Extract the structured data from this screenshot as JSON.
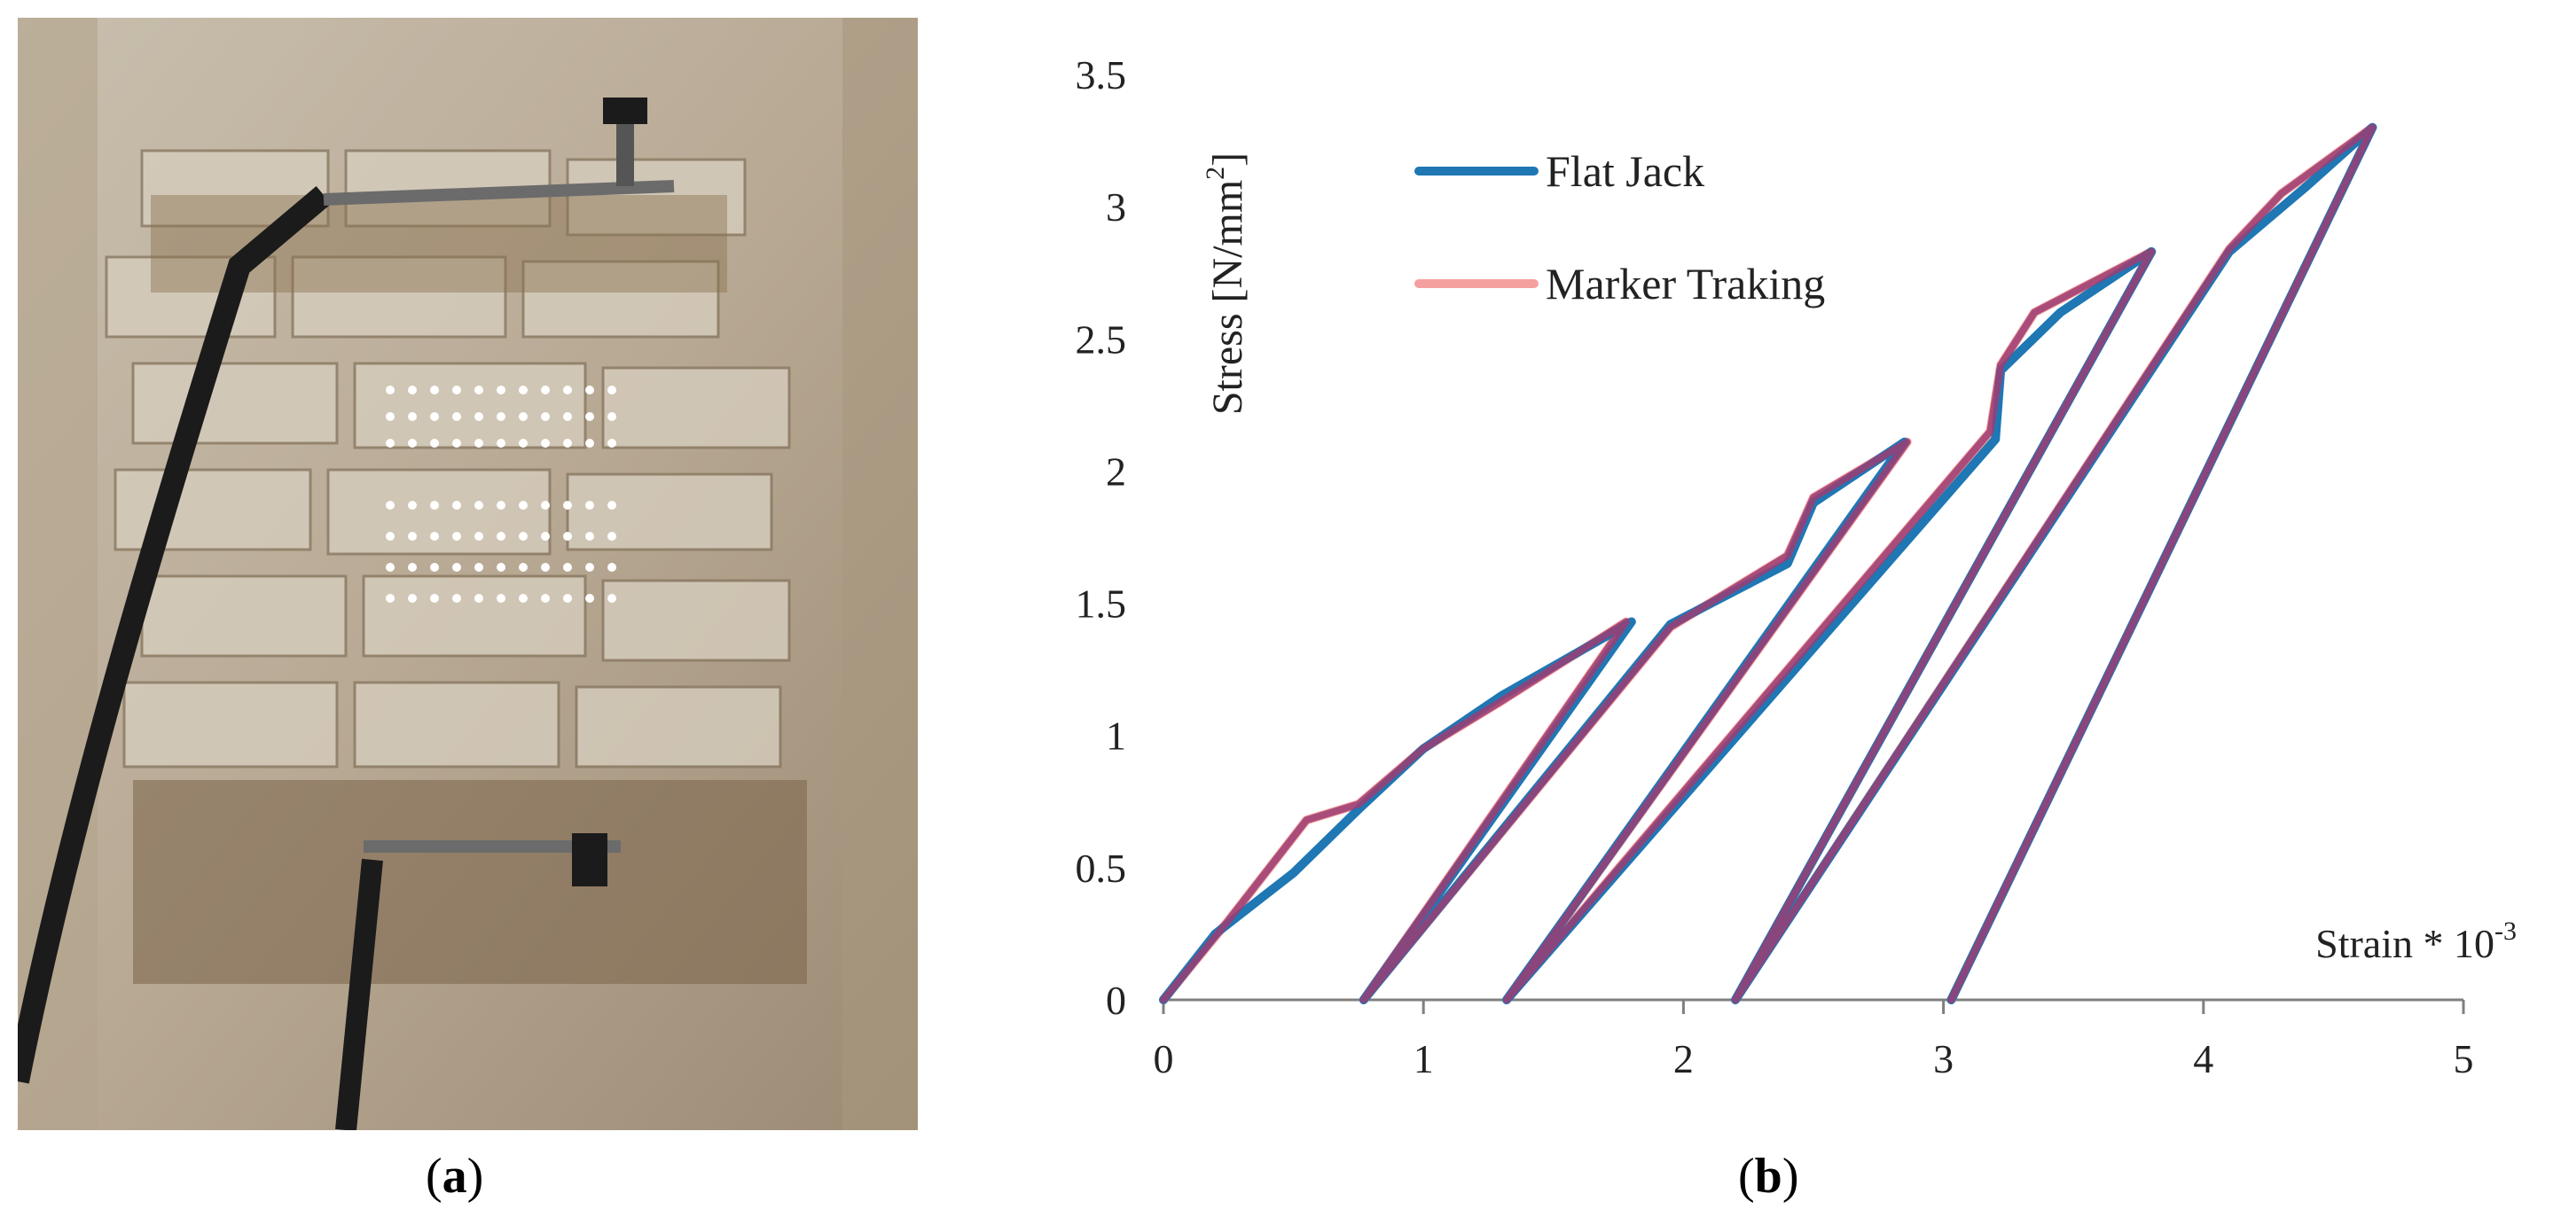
{
  "captions": {
    "a": "a",
    "b": "b"
  },
  "colors": {
    "flat_jack": "#1f77b4",
    "marker_tracking": "#f4a0a0",
    "overlap": "#9b3d73"
  },
  "chart_data": {
    "type": "line",
    "title": "",
    "xlabel": "Strain * 10",
    "xlabel_exponent": "-3",
    "ylabel": "Stress [N/mm",
    "ylabel_exponent": "2",
    "ylabel_close": "]",
    "xlim": [
      0,
      5
    ],
    "ylim": [
      0,
      3.5
    ],
    "x_ticks": [
      "0",
      "1",
      "2",
      "3",
      "4",
      "5"
    ],
    "y_ticks": [
      "0",
      "0.5",
      "1",
      "1.5",
      "2",
      "2.5",
      "3",
      "3.5"
    ],
    "grid": false,
    "legend_position": "top-left",
    "series": [
      {
        "name": "Flat Jack",
        "points": [
          [
            0,
            0
          ],
          [
            0.2,
            0.25
          ],
          [
            0.5,
            0.48
          ],
          [
            0.75,
            0.72
          ],
          [
            1.0,
            0.95
          ],
          [
            1.3,
            1.15
          ],
          [
            1.8,
            1.43
          ],
          [
            0.77,
            0
          ],
          [
            1.95,
            1.42
          ],
          [
            2.4,
            1.65
          ],
          [
            2.5,
            1.88
          ],
          [
            2.85,
            2.11
          ],
          [
            1.32,
            0
          ],
          [
            3.2,
            2.12
          ],
          [
            3.22,
            2.38
          ],
          [
            3.45,
            2.6
          ],
          [
            3.8,
            2.83
          ],
          [
            2.2,
            0
          ],
          [
            4.1,
            2.83
          ],
          [
            4.4,
            3.08
          ],
          [
            4.65,
            3.3
          ],
          [
            3.03,
            0
          ]
        ]
      },
      {
        "name": "Marker Traking",
        "points": [
          [
            0,
            0
          ],
          [
            0.25,
            0.3
          ],
          [
            0.55,
            0.68
          ],
          [
            0.75,
            0.74
          ],
          [
            1.0,
            0.95
          ],
          [
            1.3,
            1.13
          ],
          [
            1.78,
            1.43
          ],
          [
            0.77,
            0
          ],
          [
            1.95,
            1.41
          ],
          [
            2.4,
            1.68
          ],
          [
            2.5,
            1.9
          ],
          [
            2.86,
            2.11
          ],
          [
            1.32,
            0
          ],
          [
            3.18,
            2.15
          ],
          [
            3.22,
            2.4
          ],
          [
            3.35,
            2.6
          ],
          [
            3.8,
            2.83
          ],
          [
            2.2,
            0
          ],
          [
            4.1,
            2.84
          ],
          [
            4.3,
            3.05
          ],
          [
            4.65,
            3.3
          ],
          [
            3.03,
            0
          ]
        ]
      }
    ]
  }
}
